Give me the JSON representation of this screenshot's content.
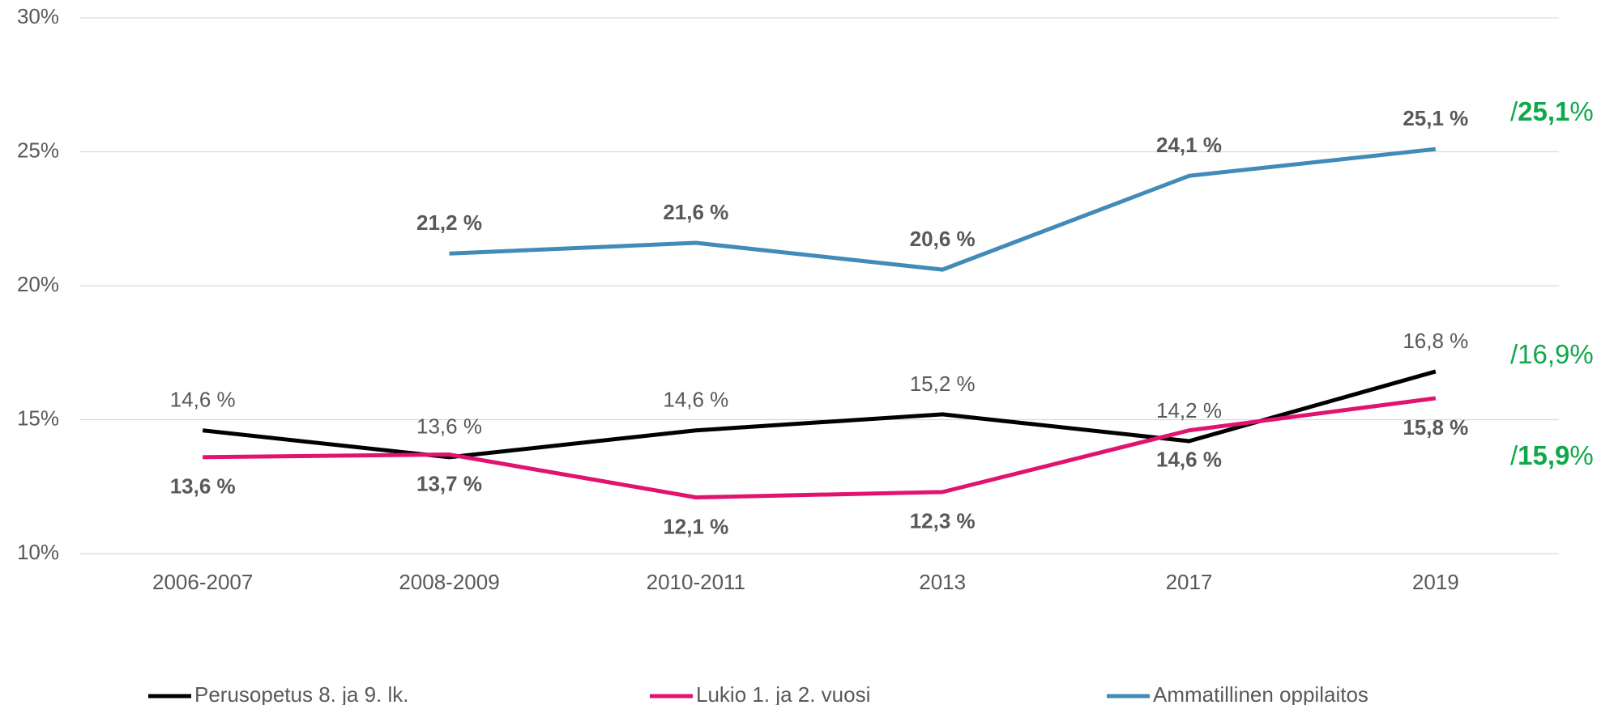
{
  "chart_data": {
    "type": "line",
    "categories": [
      "2006-2007",
      "2008-2009",
      "2010-2011",
      "2013",
      "2017",
      "2019"
    ],
    "ylim": [
      10,
      30
    ],
    "yticks": [
      {
        "value": 10,
        "label": "10%"
      },
      {
        "value": 15,
        "label": "15%"
      },
      {
        "value": 20,
        "label": "20%"
      },
      {
        "value": 25,
        "label": "25%"
      },
      {
        "value": 30,
        "label": "30%"
      }
    ],
    "grid": true,
    "legend": "bottom",
    "series": [
      {
        "name": "Perusopetus 8. ja 9. lk.",
        "color": "#000000",
        "label_color": "#262626",
        "label_position": "above",
        "label_bold": false,
        "values": [
          14.6,
          13.6,
          14.6,
          15.2,
          14.2,
          16.8
        ],
        "value_labels": [
          "14,6 %",
          "13,6 %",
          "14,6 %",
          "15,2 %",
          "14,2 %",
          "16,8 %"
        ]
      },
      {
        "name": "Lukio 1. ja 2. vuosi",
        "color": "#e0146f",
        "label_color": "#ea358e",
        "label_position": "below",
        "label_bold": true,
        "values": [
          13.6,
          13.7,
          12.1,
          12.3,
          14.6,
          15.8
        ],
        "value_labels": [
          "13,6 %",
          "13,7 %",
          "12,1 %",
          "12,3 %",
          "14,6 %",
          "15,8 %"
        ]
      },
      {
        "name": "Ammatillinen oppilaitos",
        "color": "#418bb8",
        "label_color": "#3f8ab5",
        "label_position": "above",
        "label_bold": true,
        "values": [
          null,
          21.2,
          21.6,
          20.6,
          24.1,
          25.1
        ],
        "value_labels": [
          null,
          "21,2 %",
          "21,6 %",
          "20,6 %",
          "24,1 %",
          "25,1 %"
        ]
      }
    ],
    "annotations": [
      {
        "text": [
          "/",
          "25,1",
          "%"
        ],
        "bold": true,
        "color": "#10a84a"
      },
      {
        "text": [
          "/",
          "16,9",
          "%"
        ],
        "bold": false,
        "color": "#10a84a"
      },
      {
        "text": [
          "/",
          "15,9",
          "%"
        ],
        "bold": true,
        "color": "#10a84a"
      }
    ]
  }
}
